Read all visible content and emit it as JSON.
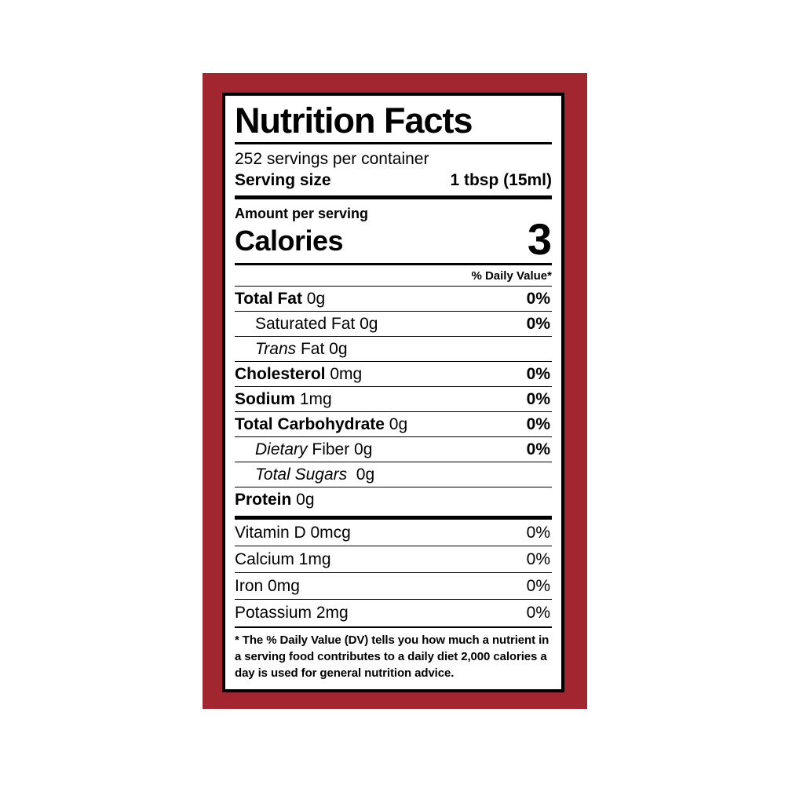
{
  "colors": {
    "frame_red": "#A1262F",
    "label_background": "#FFFFFF",
    "text": "#000000"
  },
  "label": {
    "title": "Nutrition Facts",
    "servings_per_container": "252 servings per container",
    "serving_size_label": "Serving size",
    "serving_size_value": "1 tbsp (15ml)",
    "amount_per_serving": "Amount per serving",
    "calories_label": "Calories",
    "calories_value": "3",
    "daily_value_header": "% Daily Value*",
    "nutrients": [
      {
        "segments": [
          {
            "t": "Total Fat",
            "b": true
          },
          {
            "t": " 0g"
          }
        ],
        "dv": "0%",
        "dvBold": true,
        "indent": 0
      },
      {
        "segments": [
          {
            "t": "Saturated Fat 0g"
          }
        ],
        "dv": "0%",
        "dvBold": true,
        "indent": 1
      },
      {
        "segments": [
          {
            "t": "Trans",
            "i": true
          },
          {
            "t": " Fat 0g"
          }
        ],
        "dv": "",
        "indent": 1
      },
      {
        "segments": [
          {
            "t": "Cholesterol",
            "b": true
          },
          {
            "t": " 0mg"
          }
        ],
        "dv": "0%",
        "dvBold": true,
        "indent": 0
      },
      {
        "segments": [
          {
            "t": "Sodium",
            "b": true
          },
          {
            "t": " 1mg"
          }
        ],
        "dv": "0%",
        "dvBold": true,
        "indent": 0
      },
      {
        "segments": [
          {
            "t": "Total Carbohydrate",
            "b": true
          },
          {
            "t": " 0g"
          }
        ],
        "dv": "0%",
        "dvBold": true,
        "indent": 0
      },
      {
        "segments": [
          {
            "t": "Dietary",
            "i": true
          },
          {
            "t": " Fiber 0g"
          }
        ],
        "dv": "0%",
        "dvBold": true,
        "indent": 1
      },
      {
        "segments": [
          {
            "t": "Total Sugars",
            "i": true
          },
          {
            "t": "  0g"
          }
        ],
        "dv": "",
        "indent": 1
      },
      {
        "segments": [
          {
            "t": "Protein",
            "b": true
          },
          {
            "t": " 0g"
          }
        ],
        "dv": "",
        "indent": 0
      }
    ],
    "vitamins": [
      {
        "segments": [
          {
            "t": "Vitamin D 0mcg"
          }
        ],
        "dv": "0%",
        "dvBold": false,
        "indent": 0
      },
      {
        "segments": [
          {
            "t": "Calcium 1mg"
          }
        ],
        "dv": "0%",
        "dvBold": false,
        "indent": 0
      },
      {
        "segments": [
          {
            "t": "Iron 0mg"
          }
        ],
        "dv": "0%",
        "dvBold": false,
        "indent": 0
      },
      {
        "segments": [
          {
            "t": "Potassium 2mg"
          }
        ],
        "dv": "0%",
        "dvBold": false,
        "indent": 0
      }
    ],
    "footnote": "* The % Daily Value (DV) tells you how much a nutrient in a serving food contributes to a daily diet 2,000 calories a day is used for general nutrition advice."
  }
}
